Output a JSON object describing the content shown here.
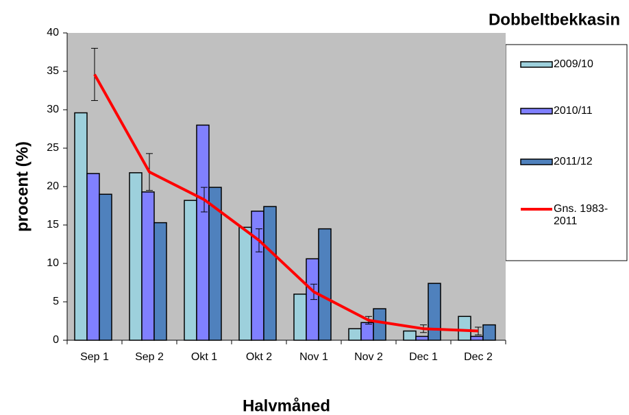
{
  "chart_data": {
    "type": "bar",
    "title": "Dobbeltbekkasin",
    "y_label": "procent (%)",
    "x_label": "Halvmåned",
    "categories": [
      "Sep 1",
      "Sep 2",
      "Okt 1",
      "Okt 2",
      "Nov 1",
      "Nov 2",
      "Dec 1",
      "Dec 2"
    ],
    "series": [
      {
        "name": "2009/10",
        "color": "#9dd0dc",
        "type": "bar",
        "values": [
          29.6,
          21.8,
          18.2,
          14.7,
          6.0,
          1.5,
          1.2,
          3.1
        ]
      },
      {
        "name": "2010/11",
        "color": "#8080ff",
        "type": "bar",
        "values": [
          21.7,
          19.3,
          28.0,
          16.8,
          10.6,
          2.3,
          0.5,
          0.5
        ]
      },
      {
        "name": "2011/12",
        "color": "#4f81bd",
        "type": "bar",
        "values": [
          19.0,
          15.3,
          19.9,
          17.4,
          14.5,
          4.1,
          7.4,
          2.0
        ]
      },
      {
        "name": "Gns. 1983-2011",
        "color": "#ff0000",
        "type": "line",
        "values": [
          34.6,
          21.9,
          18.3,
          13.0,
          6.3,
          2.6,
          1.5,
          1.2
        ],
        "errors": [
          3.4,
          2.4,
          1.6,
          1.5,
          1.0,
          0.5,
          0.5,
          0.5
        ]
      }
    ],
    "ylim": [
      0,
      40
    ],
    "yticks": [
      0,
      5,
      10,
      15,
      20,
      25,
      30,
      35,
      40
    ],
    "plot_background": "#c0c0c0"
  }
}
